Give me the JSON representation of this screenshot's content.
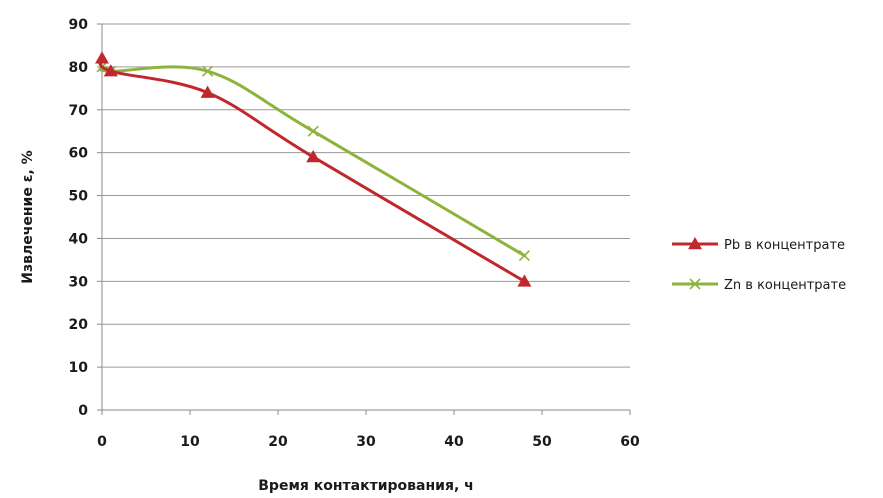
{
  "chart_data": {
    "type": "line",
    "xlabel": "Время контактирования, ч",
    "ylabel": "Извлечение ε, %",
    "xlim": [
      0,
      60
    ],
    "ylim": [
      0,
      90
    ],
    "x_ticks": [
      0,
      10,
      20,
      30,
      40,
      50,
      60
    ],
    "y_ticks": [
      0,
      10,
      20,
      30,
      40,
      50,
      60,
      70,
      80,
      90
    ],
    "grid": "horizontal",
    "legend_position": "right",
    "series": [
      {
        "name": "Pb в концентрате",
        "color": "#c0282d",
        "marker": "triangle",
        "x": [
          0,
          1,
          12,
          24,
          48
        ],
        "y": [
          82,
          79,
          74,
          59,
          30
        ]
      },
      {
        "name": "Zn в концентрате",
        "color": "#8cb43c",
        "marker": "x",
        "x": [
          0,
          1,
          12,
          24,
          48
        ],
        "y": [
          80,
          79,
          79,
          65,
          36
        ]
      }
    ]
  }
}
